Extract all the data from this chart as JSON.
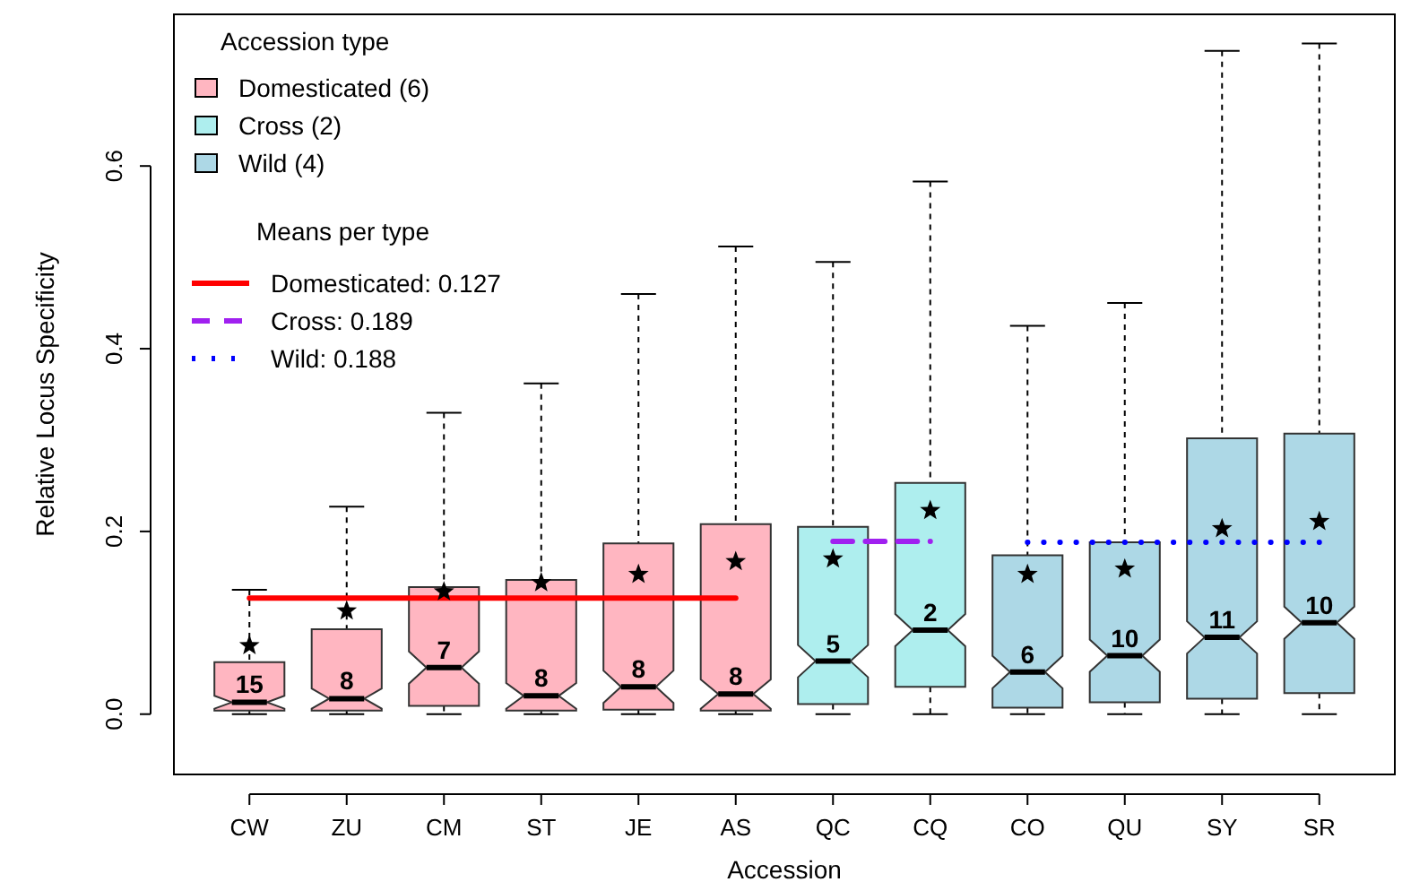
{
  "chart_data": {
    "type": "box",
    "xlabel": "Accession",
    "ylabel": "Relative Locus Specificity",
    "categories": [
      "CW",
      "ZU",
      "CM",
      "ST",
      "JE",
      "AS",
      "QC",
      "CQ",
      "CO",
      "QU",
      "SY",
      "SR"
    ],
    "ylim": [
      -0.066,
      0.766
    ],
    "yticks": [
      {
        "value": 0,
        "label": "0.0"
      },
      {
        "value": 0.2,
        "label": "0.2"
      },
      {
        "value": 0.4,
        "label": "0.4"
      },
      {
        "value": 0.6,
        "label": "0.6"
      }
    ],
    "legend": "top left",
    "legend_title": "Accession type",
    "grid": false,
    "series": [
      {
        "name": "Domesticated (6)",
        "color": "#ffb6c1",
        "boxes": [
          {
            "low": 0,
            "q1": 0.004,
            "median": 0.013,
            "q3": 0.057,
            "high": 0.136
          },
          {
            "low": 0,
            "q1": 0.004,
            "median": 0.017,
            "q3": 0.093,
            "high": 0.227
          },
          {
            "low": 0,
            "q1": 0.009,
            "median": 0.051,
            "q3": 0.139,
            "high": 0.33
          },
          {
            "low": 0,
            "q1": 0.004,
            "median": 0.02,
            "q3": 0.147,
            "high": 0.362
          },
          {
            "low": 0,
            "q1": 0.005,
            "median": 0.03,
            "q3": 0.187,
            "high": 0.46
          },
          {
            "low": 0,
            "q1": 0.004,
            "median": 0.022,
            "q3": 0.208,
            "high": 0.512
          },
          null,
          null,
          null,
          null,
          null,
          null
        ]
      },
      {
        "name": "Cross (2)",
        "color": "#aeeeee",
        "boxes": [
          null,
          null,
          null,
          null,
          null,
          null,
          {
            "low": 0,
            "q1": 0.011,
            "median": 0.058,
            "q3": 0.205,
            "high": 0.495
          },
          {
            "low": 0,
            "q1": 0.03,
            "median": 0.092,
            "q3": 0.253,
            "high": 0.583
          },
          null,
          null,
          null,
          null
        ]
      },
      {
        "name": "Wild (4)",
        "color": "#add8e6",
        "boxes": [
          null,
          null,
          null,
          null,
          null,
          null,
          null,
          null,
          {
            "low": 0,
            "q1": 0.007,
            "median": 0.046,
            "q3": 0.174,
            "high": 0.425
          },
          {
            "low": 0,
            "q1": 0.013,
            "median": 0.064,
            "q3": 0.188,
            "high": 0.45
          },
          {
            "low": 0,
            "q1": 0.017,
            "median": 0.084,
            "q3": 0.302,
            "high": 0.726
          },
          {
            "low": 0,
            "q1": 0.023,
            "median": 0.1,
            "q3": 0.307,
            "high": 0.734
          }
        ]
      },
      {
        "name": "Domesticated: 0.127",
        "color": "#ff0000",
        "type": "line",
        "line_style": "solid",
        "values": [
          0.127,
          0.127,
          0.127,
          0.127,
          0.127,
          0.127,
          null,
          null,
          null,
          null,
          null,
          null
        ]
      },
      {
        "name": "Cross: 0.189",
        "color": "#a020f0",
        "type": "line",
        "line_style": "dashed",
        "values": [
          null,
          null,
          null,
          null,
          null,
          null,
          0.189,
          0.189,
          null,
          null,
          null,
          null
        ]
      },
      {
        "name": "Wild: 0.188",
        "color": "#0000ff",
        "type": "line",
        "line_style": "dotted",
        "values": [
          null,
          null,
          null,
          null,
          null,
          null,
          null,
          null,
          0.188,
          0.188,
          0.188,
          0.188
        ]
      },
      {
        "color": "#000000",
        "type": "scatter",
        "marker": "star",
        "x": [
          "CW",
          "ZU",
          "CM",
          "ST",
          "JE",
          "AS",
          "QC",
          "CQ",
          "CO",
          "QU",
          "SY",
          "SR"
        ],
        "values": [
          0.075,
          0.113,
          0.134,
          0.144,
          0.153,
          0.167,
          0.17,
          0.223,
          0.153,
          0.159,
          0.203,
          0.211
        ]
      }
    ],
    "annotations": [
      "Means per type",
      {
        "text": "15",
        "x": "CW",
        "y": 0.013
      },
      {
        "text": "8",
        "x": "ZU",
        "y": 0.017
      },
      {
        "text": "7",
        "x": "CM",
        "y": 0.051
      },
      {
        "text": "8",
        "x": "ST",
        "y": 0.02
      },
      {
        "text": "8",
        "x": "JE",
        "y": 0.03
      },
      {
        "text": "8",
        "x": "AS",
        "y": 0.022
      },
      {
        "text": "5",
        "x": "QC",
        "y": 0.058
      },
      {
        "text": "2",
        "x": "CQ",
        "y": 0.092
      },
      {
        "text": "6",
        "x": "CO",
        "y": 0.046
      },
      {
        "text": "10",
        "x": "QU",
        "y": 0.064
      },
      {
        "text": "11",
        "x": "SY",
        "y": 0.084
      },
      {
        "text": "10",
        "x": "SR",
        "y": 0.1
      }
    ]
  }
}
